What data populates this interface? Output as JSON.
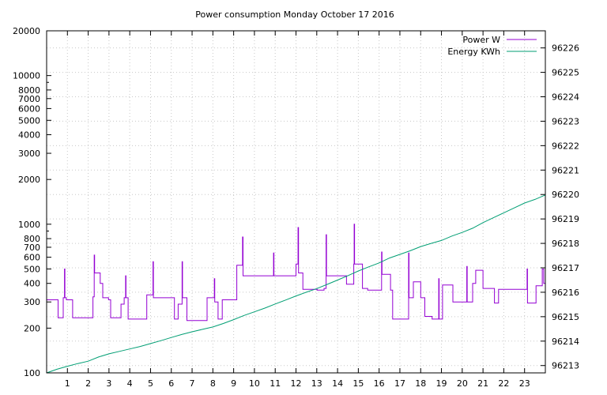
{
  "chart_data": {
    "type": "line",
    "title": "Power consumption Monday October 17 2016",
    "grid": true,
    "legend_position": "top-right",
    "colors": {
      "power": "#9400d3",
      "energy": "#009e73"
    },
    "x_range": [
      0,
      24
    ],
    "x_ticks": [
      1,
      2,
      3,
      4,
      5,
      6,
      7,
      8,
      9,
      10,
      11,
      12,
      13,
      14,
      15,
      16,
      17,
      18,
      19,
      20,
      21,
      22,
      23
    ],
    "y_left": {
      "scale": "log",
      "range": [
        100,
        20000
      ],
      "major_ticks": [
        100,
        200,
        300,
        400,
        500,
        600,
        700,
        800,
        1000,
        2000,
        3000,
        4000,
        5000,
        6000,
        7000,
        8000,
        10000,
        20000
      ],
      "minor_ticks": [
        900,
        9000
      ]
    },
    "y_right": {
      "range": [
        96212.7,
        96226.7
      ],
      "ticks": [
        96213,
        96214,
        96215,
        96216,
        96217,
        96218,
        96219,
        96220,
        96221,
        96222,
        96223,
        96224,
        96225,
        96226
      ]
    },
    "series": [
      {
        "name": "Power W",
        "axis": "left",
        "color": "#9400d3",
        "step": true,
        "points": [
          [
            0,
            310
          ],
          [
            0.5,
            310
          ],
          [
            0.55,
            235
          ],
          [
            0.78,
            235
          ],
          [
            0.8,
            320
          ],
          [
            0.84,
            320
          ],
          [
            0.86,
            500
          ],
          [
            0.88,
            320
          ],
          [
            0.95,
            310
          ],
          [
            1.2,
            310
          ],
          [
            1.25,
            235
          ],
          [
            2.2,
            235
          ],
          [
            2.23,
            325
          ],
          [
            2.27,
            325
          ],
          [
            2.29,
            620
          ],
          [
            2.31,
            470
          ],
          [
            2.55,
            470
          ],
          [
            2.58,
            400
          ],
          [
            2.65,
            400
          ],
          [
            2.7,
            320
          ],
          [
            2.95,
            320
          ],
          [
            2.98,
            310
          ],
          [
            3.05,
            310
          ],
          [
            3.08,
            235
          ],
          [
            3.55,
            235
          ],
          [
            3.58,
            290
          ],
          [
            3.7,
            290
          ],
          [
            3.73,
            320
          ],
          [
            3.78,
            320
          ],
          [
            3.8,
            450
          ],
          [
            3.82,
            320
          ],
          [
            3.88,
            320
          ],
          [
            3.92,
            230
          ],
          [
            4.8,
            230
          ],
          [
            4.82,
            335
          ],
          [
            5.1,
            335
          ],
          [
            5.12,
            560
          ],
          [
            5.14,
            320
          ],
          [
            6.1,
            320
          ],
          [
            6.15,
            230
          ],
          [
            6.3,
            230
          ],
          [
            6.33,
            290
          ],
          [
            6.5,
            290
          ],
          [
            6.52,
            560
          ],
          [
            6.54,
            320
          ],
          [
            6.7,
            320
          ],
          [
            6.75,
            225
          ],
          [
            7.7,
            225
          ],
          [
            7.72,
            320
          ],
          [
            8.05,
            320
          ],
          [
            8.07,
            430
          ],
          [
            8.09,
            300
          ],
          [
            8.2,
            300
          ],
          [
            8.25,
            230
          ],
          [
            8.4,
            230
          ],
          [
            8.45,
            310
          ],
          [
            9.1,
            310
          ],
          [
            9.15,
            530
          ],
          [
            9.4,
            530
          ],
          [
            9.43,
            820
          ],
          [
            9.45,
            450
          ],
          [
            10.9,
            450
          ],
          [
            10.92,
            640
          ],
          [
            10.94,
            450
          ],
          [
            11.98,
            450
          ],
          [
            12.0,
            540
          ],
          [
            12.08,
            540
          ],
          [
            12.1,
            950
          ],
          [
            12.12,
            470
          ],
          [
            12.3,
            470
          ],
          [
            12.33,
            365
          ],
          [
            13.0,
            365
          ],
          [
            13.02,
            360
          ],
          [
            13.3,
            360
          ],
          [
            13.35,
            370
          ],
          [
            13.42,
            370
          ],
          [
            13.45,
            850
          ],
          [
            13.47,
            450
          ],
          [
            14.4,
            450
          ],
          [
            14.43,
            395
          ],
          [
            14.75,
            395
          ],
          [
            14.78,
            540
          ],
          [
            14.8,
            1000
          ],
          [
            14.82,
            540
          ],
          [
            15.15,
            540
          ],
          [
            15.2,
            370
          ],
          [
            15.4,
            370
          ],
          [
            15.45,
            360
          ],
          [
            16.1,
            360
          ],
          [
            16.12,
            650
          ],
          [
            16.14,
            460
          ],
          [
            16.5,
            460
          ],
          [
            16.55,
            360
          ],
          [
            16.6,
            360
          ],
          [
            16.65,
            230
          ],
          [
            17.4,
            230
          ],
          [
            17.42,
            640
          ],
          [
            17.44,
            320
          ],
          [
            17.6,
            320
          ],
          [
            17.65,
            410
          ],
          [
            17.95,
            410
          ],
          [
            18.0,
            320
          ],
          [
            18.15,
            320
          ],
          [
            18.2,
            240
          ],
          [
            18.5,
            240
          ],
          [
            18.55,
            230
          ],
          [
            18.85,
            230
          ],
          [
            18.87,
            430
          ],
          [
            18.89,
            230
          ],
          [
            19.0,
            230
          ],
          [
            19.05,
            390
          ],
          [
            19.5,
            390
          ],
          [
            19.55,
            300
          ],
          [
            20.2,
            300
          ],
          [
            20.22,
            520
          ],
          [
            20.24,
            300
          ],
          [
            20.45,
            300
          ],
          [
            20.5,
            400
          ],
          [
            20.6,
            400
          ],
          [
            20.65,
            490
          ],
          [
            20.95,
            490
          ],
          [
            21.0,
            370
          ],
          [
            21.5,
            370
          ],
          [
            21.55,
            295
          ],
          [
            21.7,
            295
          ],
          [
            21.75,
            365
          ],
          [
            23.1,
            365
          ],
          [
            23.12,
            500
          ],
          [
            23.14,
            295
          ],
          [
            23.5,
            295
          ],
          [
            23.55,
            385
          ],
          [
            23.8,
            385
          ],
          [
            23.85,
            500
          ],
          [
            23.9,
            500
          ],
          [
            23.92,
            400
          ],
          [
            24,
            400
          ]
        ]
      },
      {
        "name": "Energy KWh",
        "axis": "right",
        "color": "#009e73",
        "points": [
          [
            0,
            96212.7
          ],
          [
            0.5,
            96212.85
          ],
          [
            1,
            96212.97
          ],
          [
            1.5,
            96213.08
          ],
          [
            2,
            96213.18
          ],
          [
            2.5,
            96213.35
          ],
          [
            3,
            96213.48
          ],
          [
            3.5,
            96213.58
          ],
          [
            4,
            96213.68
          ],
          [
            4.5,
            96213.78
          ],
          [
            5,
            96213.9
          ],
          [
            5.5,
            96214.02
          ],
          [
            6,
            96214.15
          ],
          [
            6.5,
            96214.27
          ],
          [
            7,
            96214.38
          ],
          [
            7.5,
            96214.48
          ],
          [
            8,
            96214.58
          ],
          [
            8.5,
            96214.72
          ],
          [
            9,
            96214.88
          ],
          [
            9.5,
            96215.05
          ],
          [
            10,
            96215.2
          ],
          [
            10.5,
            96215.35
          ],
          [
            11,
            96215.52
          ],
          [
            11.5,
            96215.68
          ],
          [
            12,
            96215.85
          ],
          [
            12.5,
            96216.0
          ],
          [
            13,
            96216.15
          ],
          [
            13.5,
            96216.32
          ],
          [
            14,
            96216.5
          ],
          [
            14.5,
            96216.68
          ],
          [
            15,
            96216.87
          ],
          [
            15.5,
            96217.04
          ],
          [
            16,
            96217.2
          ],
          [
            16.5,
            96217.4
          ],
          [
            17,
            96217.55
          ],
          [
            17.5,
            96217.7
          ],
          [
            18,
            96217.87
          ],
          [
            18.5,
            96218.0
          ],
          [
            19,
            96218.12
          ],
          [
            19.5,
            96218.3
          ],
          [
            20,
            96218.45
          ],
          [
            20.5,
            96218.62
          ],
          [
            21,
            96218.85
          ],
          [
            21.5,
            96219.05
          ],
          [
            22,
            96219.25
          ],
          [
            22.5,
            96219.45
          ],
          [
            23,
            96219.65
          ],
          [
            23.5,
            96219.8
          ],
          [
            24,
            96219.98
          ]
        ]
      }
    ]
  }
}
